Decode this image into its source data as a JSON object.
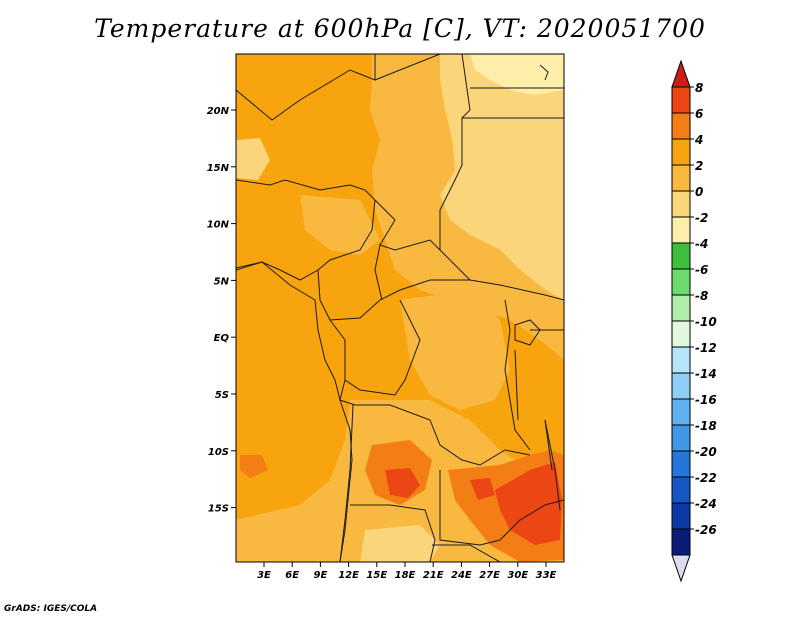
{
  "title": "Temperature at 600hPa [C], VT: 2020051700",
  "credit": "GrADS: IGES/COLA",
  "lat_labels": [
    "20N",
    "15N",
    "10N",
    "5N",
    "EQ",
    "5S",
    "10S",
    "15S"
  ],
  "lon_labels": [
    "3E",
    "6E",
    "9E",
    "12E",
    "15E",
    "18E",
    "21E",
    "24E",
    "27E",
    "30E",
    "33E"
  ],
  "colorbar": {
    "labels": [
      "8",
      "6",
      "4",
      "2",
      "0",
      "-2",
      "-4",
      "-6",
      "-8",
      "-10",
      "-12",
      "-14",
      "-16",
      "-18",
      "-20",
      "-22",
      "-24",
      "-26"
    ],
    "colors": [
      "#c81e14",
      "#ec4614",
      "#f37e16",
      "#f7a40e",
      "#f9b941",
      "#fbd57a",
      "#fdeeaa",
      "#3dbe3d",
      "#6ed96d",
      "#b0ecab",
      "#e0f8dd",
      "#b8e4f8",
      "#8ccef5",
      "#5fb2ef",
      "#3f97e5",
      "#2476da",
      "#1558c4",
      "#0b3aa6",
      "#0a1c78"
    ],
    "top_arrow_color": "#c81e14",
    "bottom_arrow_color": "#dcdcf0"
  },
  "map_colors": {
    "base": "#f7a40e",
    "light": "#f9b941",
    "lighter": "#fbd57a",
    "lightest": "#fdeeaa",
    "warm": "#f37e16",
    "hot": "#ec4614",
    "border": "#1a1a1a"
  }
}
